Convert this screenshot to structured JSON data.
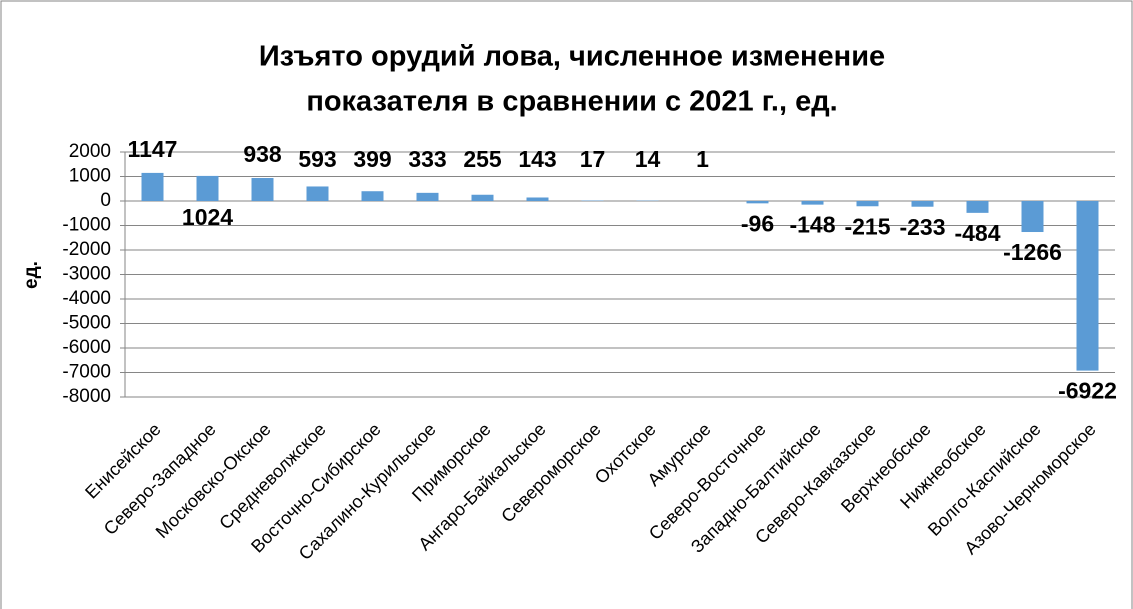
{
  "chart_data": {
    "type": "bar",
    "title": [
      "Изъято орудий лова, численное изменение",
      "показателя  в сравнении с 2021 г., ед."
    ],
    "y_label": "ед.",
    "categories": [
      "Енисейское",
      "Северо-Западное",
      "Московско-Окское",
      "Средневолжское",
      "Восточно-Сибирское",
      "Сахалино-Курильское",
      "Приморское",
      "Ангаро-Байкальское",
      "Североморское",
      "Охотское",
      "Амурское",
      "Северо-Восточное",
      "Западно-Балтийское",
      "Северо-Кавказское",
      "Верхнеобское",
      "Нижнеобское",
      "Волго-Каспийское",
      "Азово-Черноморское"
    ],
    "values": [
      1147,
      1024,
      938,
      593,
      399,
      333,
      255,
      143,
      17,
      14,
      1,
      -96,
      -148,
      -215,
      -233,
      -484,
      -1266,
      -6922
    ],
    "color": "#5b9bd5",
    "ylim": [
      -8000,
      2000
    ],
    "yticks": [
      2000,
      1000,
      0,
      -1000,
      -2000,
      -3000,
      -4000,
      -5000,
      -6000,
      -7000,
      -8000
    ],
    "grid": true
  }
}
